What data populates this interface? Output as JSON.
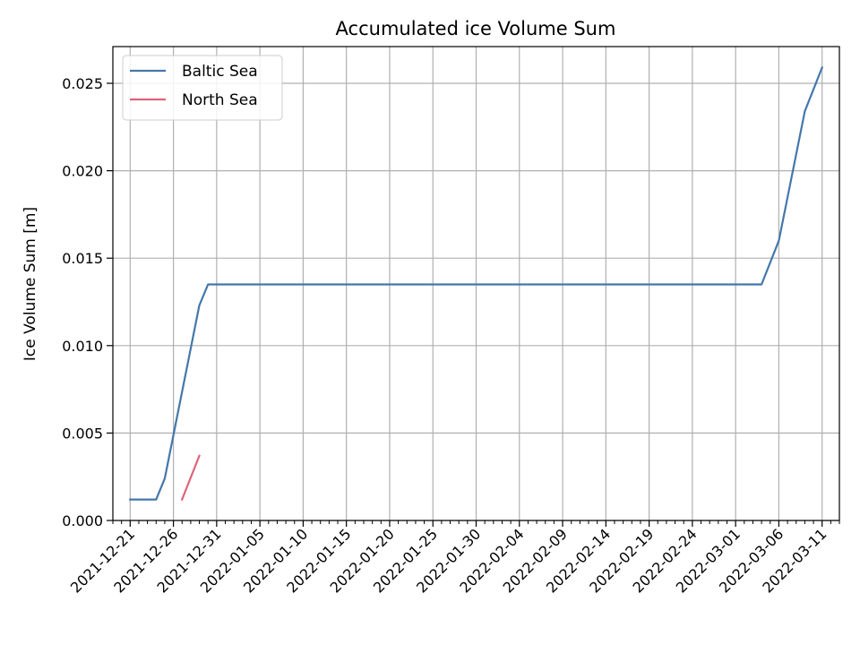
{
  "chart_data": {
    "type": "line",
    "title": "Accumulated ice Volume Sum",
    "xlabel": "",
    "ylabel": "Ice Volume Sum [m]",
    "xlim": [
      "2021-12-19",
      "2022-03-13"
    ],
    "ylim": [
      0,
      0.0271
    ],
    "grid": true,
    "legend_position": "top-left",
    "x_ticks": [
      "2021-12-21",
      "2021-12-26",
      "2021-12-31",
      "2022-01-05",
      "2022-01-10",
      "2022-01-15",
      "2022-01-20",
      "2022-01-25",
      "2022-01-30",
      "2022-02-04",
      "2022-02-09",
      "2022-02-14",
      "2022-02-19",
      "2022-02-24",
      "2022-03-01",
      "2022-03-06",
      "2022-03-11"
    ],
    "y_ticks": [
      "0.000",
      "0.005",
      "0.010",
      "0.015",
      "0.020",
      "0.025"
    ],
    "y_tick_values": [
      0,
      0.005,
      0.01,
      0.015,
      0.02,
      0.025
    ],
    "series": [
      {
        "name": "Baltic Sea",
        "color": "#4477aa",
        "points": [
          [
            "2021-12-21",
            0.0012
          ],
          [
            "2021-12-24",
            0.0012
          ],
          [
            "2021-12-25",
            0.0024
          ],
          [
            "2021-12-29",
            0.0123
          ],
          [
            "2021-12-30",
            0.0135
          ],
          [
            "2022-03-04",
            0.0135
          ],
          [
            "2022-03-06",
            0.016
          ],
          [
            "2022-03-09",
            0.0234
          ],
          [
            "2022-03-11",
            0.0259
          ]
        ]
      },
      {
        "name": "North Sea",
        "color": "#e0627a",
        "points": [
          [
            "2021-12-27",
            0.0012
          ],
          [
            "2021-12-29",
            0.0037
          ]
        ]
      }
    ]
  }
}
